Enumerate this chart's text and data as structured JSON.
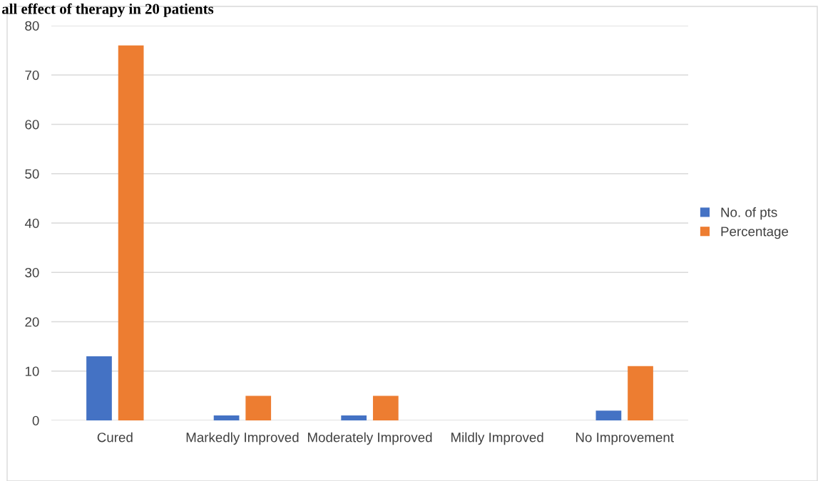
{
  "chart_data": {
    "type": "bar",
    "title": "all effect of therapy in 20 patients",
    "categories": [
      "Cured",
      "Markedly Improved",
      "Moderately Improved",
      "Mildly Improved",
      "No Improvement"
    ],
    "series": [
      {
        "name": "No. of pts",
        "color": "#4472c4",
        "values": [
          13,
          1,
          1,
          0,
          2
        ]
      },
      {
        "name": "Percentage",
        "color": "#ed7d31",
        "values": [
          76,
          5,
          5,
          0,
          11
        ]
      }
    ],
    "ylim": [
      0,
      80
    ],
    "yticks": [
      0,
      10,
      20,
      30,
      40,
      50,
      60,
      70,
      80
    ],
    "grid": "y",
    "legend": "right"
  }
}
